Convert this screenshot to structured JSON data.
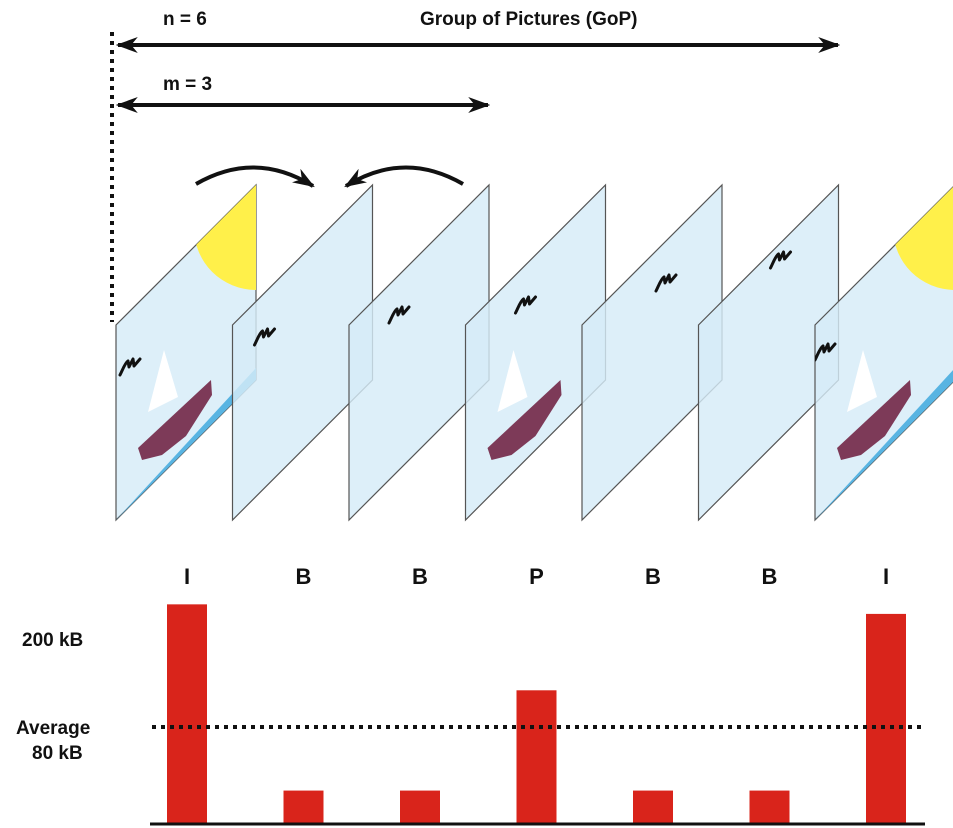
{
  "labels": {
    "n": "n = 6",
    "m": "m = 3",
    "gop": "Group of Pictures (GoP)",
    "size_200": "200 kB",
    "average_line1": "Average",
    "average_line2": "80 kB"
  },
  "frames": [
    {
      "type": "I",
      "size_kb": 230,
      "content": [
        "sun",
        "bird",
        "sail",
        "boat",
        "sea"
      ]
    },
    {
      "type": "B",
      "size_kb": 35,
      "content": [
        "bird"
      ]
    },
    {
      "type": "B",
      "size_kb": 35,
      "content": [
        "bird"
      ]
    },
    {
      "type": "P",
      "size_kb": 140,
      "content": [
        "bird",
        "sail",
        "boat"
      ]
    },
    {
      "type": "B",
      "size_kb": 35,
      "content": [
        "bird"
      ]
    },
    {
      "type": "B",
      "size_kb": 35,
      "content": [
        "bird"
      ]
    },
    {
      "type": "I",
      "size_kb": 220,
      "content": [
        "sun",
        "bird",
        "sail",
        "boat",
        "sea"
      ]
    }
  ],
  "average_kb": 80,
  "colors": {
    "frame_fill": "#d6ecf8",
    "frame_stroke": "#555555",
    "bar": "#d9241b",
    "sun": "#fff04a",
    "boat": "#7d3a58",
    "sea": "#58b4e2",
    "arrow": "#111111"
  }
}
